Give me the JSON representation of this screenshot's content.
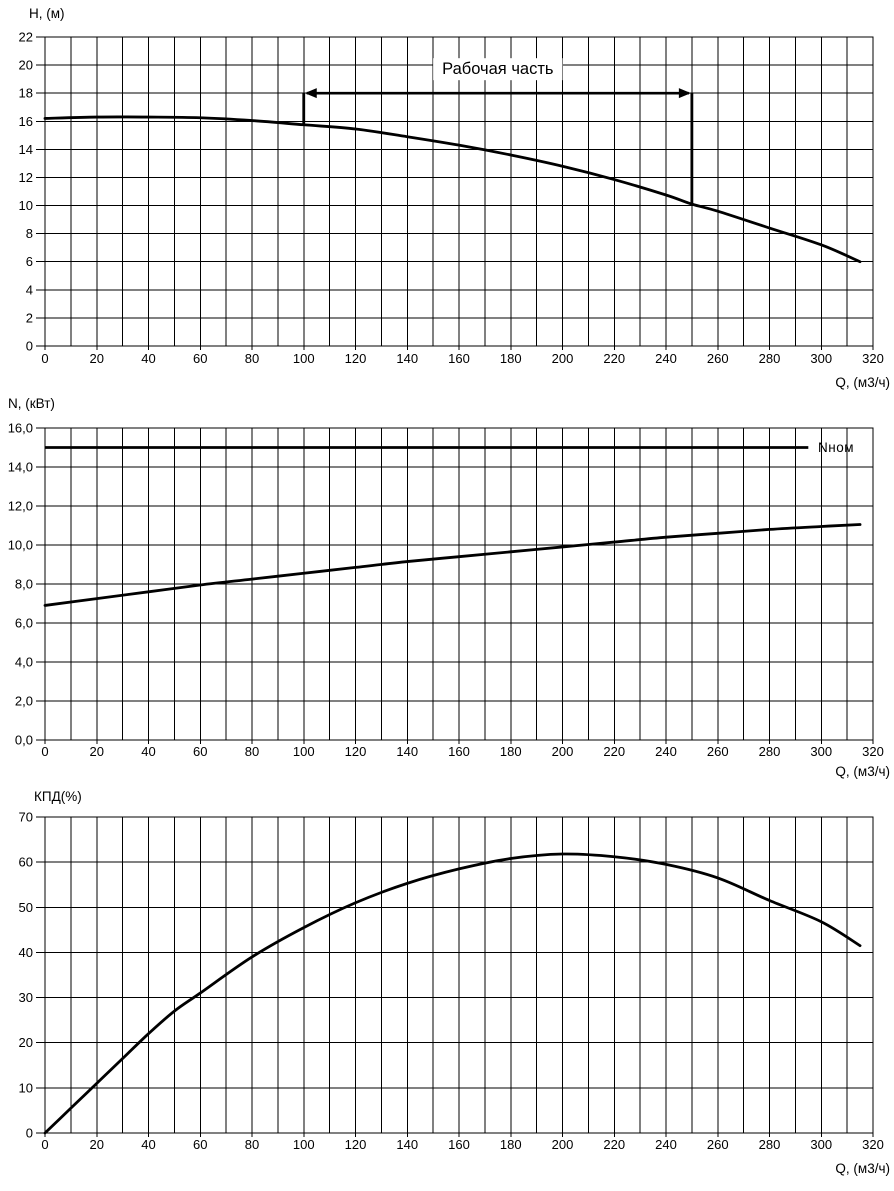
{
  "colors": {
    "background": "#ffffff",
    "foreground": "#000000",
    "grid": "#000000",
    "curve": "#000000"
  },
  "chart_data": [
    {
      "id": "head-curve",
      "type": "line",
      "ylabel": "H, (м)",
      "xlabel": "Q, (м3/ч)",
      "xlim": [
        0,
        320
      ],
      "ylim": [
        0,
        22
      ],
      "x_tick_step": 20,
      "x_grid_step": 10,
      "y_tick_step": 2,
      "y_grid_step": 2,
      "y_tick_format": "integer",
      "grid": true,
      "legend_position": "none",
      "series": [
        {
          "name": "H",
          "x": [
            0,
            20,
            40,
            60,
            80,
            100,
            120,
            140,
            160,
            180,
            200,
            220,
            240,
            250,
            260,
            280,
            300,
            315
          ],
          "y": [
            16.2,
            16.3,
            16.3,
            16.25,
            16.05,
            15.75,
            15.45,
            14.9,
            14.3,
            13.6,
            12.8,
            11.85,
            10.75,
            10.1,
            9.6,
            8.4,
            7.2,
            6.0
          ]
        }
      ],
      "annotation": {
        "label": "Рабочая часть",
        "x_from": 100,
        "x_to": 250,
        "arrow_y": 18,
        "drop_to_y": [
          15.75,
          10.0
        ]
      }
    },
    {
      "id": "power-curve",
      "type": "line",
      "ylabel": "N, (кВт)",
      "xlabel": "Q, (м3/ч)",
      "xlim": [
        0,
        320
      ],
      "ylim": [
        0,
        16
      ],
      "x_tick_step": 20,
      "x_grid_step": 10,
      "y_tick_step": 2,
      "y_grid_step": 2,
      "y_tick_format": "comma1",
      "grid": true,
      "legend_position": "none",
      "series": [
        {
          "name": "N",
          "x": [
            0,
            20,
            40,
            60,
            80,
            100,
            120,
            140,
            160,
            180,
            200,
            220,
            240,
            260,
            280,
            300,
            315
          ],
          "y": [
            6.9,
            7.25,
            7.6,
            7.95,
            8.25,
            8.55,
            8.85,
            9.15,
            9.4,
            9.65,
            9.9,
            10.15,
            10.4,
            10.6,
            10.8,
            10.95,
            11.05
          ]
        }
      ],
      "ref_line": {
        "label": "Nном",
        "value": 15.0,
        "x_start": 0,
        "x_end": 295
      }
    },
    {
      "id": "efficiency-curve",
      "type": "line",
      "ylabel": "КПД(%)",
      "xlabel": "Q, (м3/ч)",
      "xlim": [
        0,
        320
      ],
      "ylim": [
        0,
        70
      ],
      "x_tick_step": 20,
      "x_grid_step": 10,
      "y_tick_step": 10,
      "y_grid_step": 10,
      "y_tick_format": "integer",
      "grid": true,
      "legend_position": "none",
      "series": [
        {
          "name": "КПД",
          "x": [
            0,
            10,
            20,
            30,
            40,
            50,
            60,
            80,
            100,
            120,
            140,
            160,
            180,
            200,
            220,
            240,
            260,
            280,
            300,
            315
          ],
          "y": [
            0,
            5.5,
            11,
            16.5,
            22,
            27,
            31,
            39,
            45.5,
            51,
            55.3,
            58.5,
            60.8,
            61.8,
            61.2,
            59.5,
            56.5,
            51.5,
            46.8,
            41.5
          ]
        }
      ]
    }
  ]
}
